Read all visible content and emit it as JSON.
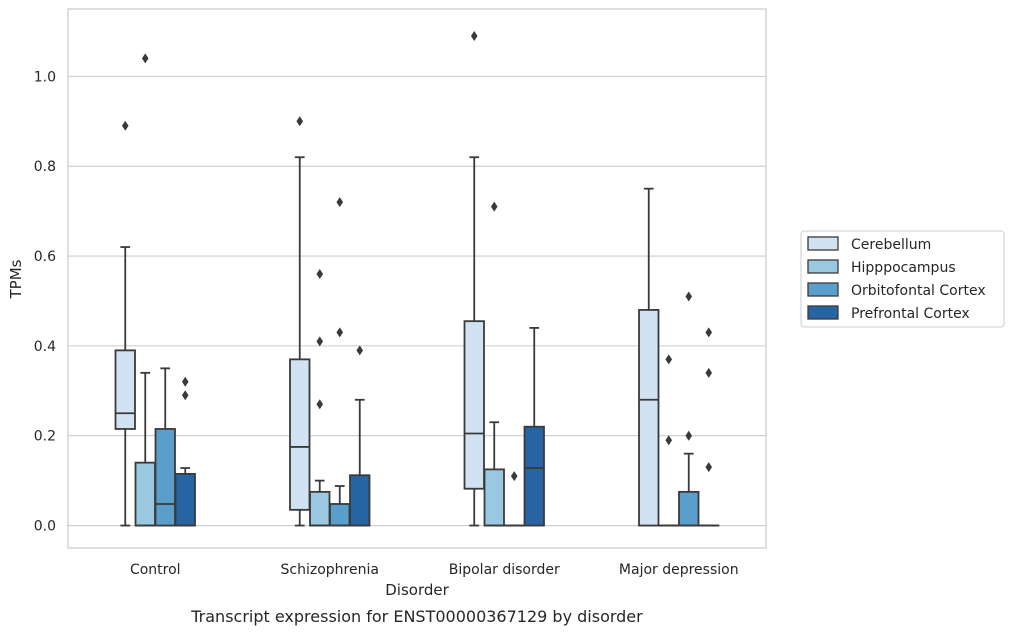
{
  "chart_data": {
    "type": "box",
    "title": "Transcript expression for ENST00000367129 by disorder",
    "xlabel": "Disorder",
    "ylabel": "TPMs",
    "ylim": [
      -0.05,
      1.15
    ],
    "yticks": [
      "0.0",
      "0.2",
      "0.4",
      "0.6",
      "0.8",
      "1.0"
    ],
    "grid": "horizontal",
    "legend_position": "outside-right",
    "categories": [
      "Control",
      "Schizophrenia",
      "Bipolar disorder",
      "Major depression"
    ],
    "series": [
      {
        "name": "Cerebellum",
        "color": "#d1e2f2",
        "boxes": [
          {
            "whislo": 0.0,
            "q1": 0.215,
            "med": 0.25,
            "q3": 0.39,
            "whishi": 0.62,
            "fliers": [
              0.89
            ]
          },
          {
            "whislo": 0.0,
            "q1": 0.035,
            "med": 0.175,
            "q3": 0.37,
            "whishi": 0.82,
            "fliers": [
              0.9
            ]
          },
          {
            "whislo": 0.0,
            "q1": 0.082,
            "med": 0.205,
            "q3": 0.455,
            "whishi": 0.82,
            "fliers": [
              1.09
            ]
          },
          {
            "whislo": 0.0,
            "q1": 0.0,
            "med": 0.28,
            "q3": 0.48,
            "whishi": 0.75,
            "fliers": []
          }
        ]
      },
      {
        "name": "Hipppocampus",
        "color": "#9ac8e0",
        "boxes": [
          {
            "whislo": 0.0,
            "q1": 0.0,
            "med": 0.0,
            "q3": 0.14,
            "whishi": 0.34,
            "fliers": [
              1.04
            ]
          },
          {
            "whislo": 0.0,
            "q1": 0.0,
            "med": 0.0,
            "q3": 0.075,
            "whishi": 0.1,
            "fliers": [
              0.27,
              0.41,
              0.56
            ]
          },
          {
            "whislo": 0.0,
            "q1": 0.0,
            "med": 0.0,
            "q3": 0.125,
            "whishi": 0.23,
            "fliers": [
              0.71
            ]
          },
          {
            "whislo": 0.0,
            "q1": 0.0,
            "med": 0.0,
            "q3": 0.0,
            "whishi": 0.0,
            "fliers": [
              0.19,
              0.37
            ]
          }
        ]
      },
      {
        "name": "Orbitofontal Cortex",
        "color": "#5a9fcb",
        "boxes": [
          {
            "whislo": 0.0,
            "q1": 0.0,
            "med": 0.048,
            "q3": 0.215,
            "whishi": 0.35,
            "fliers": []
          },
          {
            "whislo": 0.0,
            "q1": 0.0,
            "med": 0.0,
            "q3": 0.048,
            "whishi": 0.088,
            "fliers": [
              0.43,
              0.72
            ]
          },
          {
            "whislo": 0.0,
            "q1": 0.0,
            "med": 0.0,
            "q3": 0.0,
            "whishi": 0.0,
            "fliers": [
              0.11
            ]
          },
          {
            "whislo": 0.0,
            "q1": 0.0,
            "med": 0.0,
            "q3": 0.075,
            "whishi": 0.16,
            "fliers": [
              0.2,
              0.51
            ]
          }
        ]
      },
      {
        "name": "Prefrontal Cortex",
        "color": "#2664a4",
        "boxes": [
          {
            "whislo": 0.0,
            "q1": 0.0,
            "med": 0.0,
            "q3": 0.115,
            "whishi": 0.128,
            "fliers": [
              0.29,
              0.32
            ]
          },
          {
            "whislo": 0.0,
            "q1": 0.0,
            "med": 0.0,
            "q3": 0.112,
            "whishi": 0.28,
            "fliers": [
              0.39
            ]
          },
          {
            "whislo": 0.0,
            "q1": 0.0,
            "med": 0.128,
            "q3": 0.22,
            "whishi": 0.44,
            "fliers": []
          },
          {
            "whislo": 0.0,
            "q1": 0.0,
            "med": 0.0,
            "q3": 0.0,
            "whishi": 0.0,
            "fliers": [
              0.13,
              0.34,
              0.43
            ]
          }
        ]
      }
    ]
  }
}
